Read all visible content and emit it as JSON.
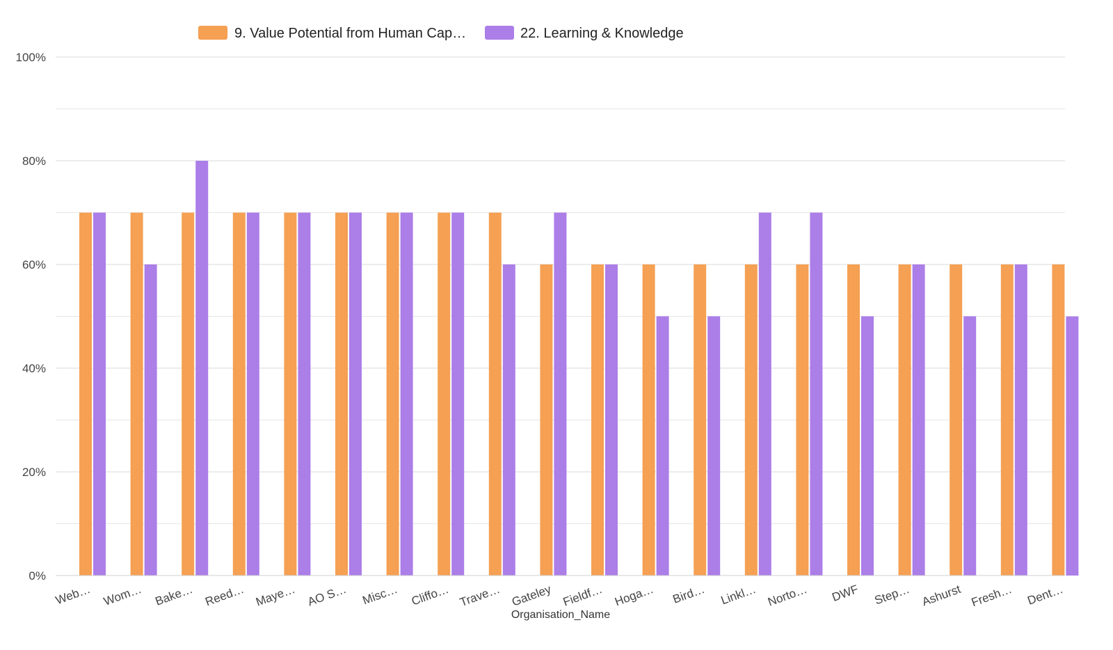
{
  "chart_data": {
    "type": "bar",
    "xlabel": "Organisation_Name",
    "ylabel": "",
    "ylim": [
      0,
      100
    ],
    "y_unit": "%",
    "yticks": [
      "0%",
      "20%",
      "40%",
      "60%",
      "80%",
      "100%"
    ],
    "ytick_values": [
      0,
      20,
      40,
      60,
      80,
      100
    ],
    "minor_gridlines": [
      10,
      30,
      50,
      70,
      90
    ],
    "grid": true,
    "legend_position": "top",
    "categories": [
      "Web…",
      "Wom…",
      "Bake…",
      "Reed…",
      "Maye…",
      "AO S…",
      "Misc…",
      "Cliffo…",
      "Trave…",
      "Gateley",
      "Fieldf…",
      "Hoga…",
      "Bird…",
      "Linkl…",
      "Norto…",
      "DWF",
      "Step…",
      "Ashurst",
      "Fresh…",
      "Dent…"
    ],
    "series": [
      {
        "name": "9. Value Potential from Human Cap…",
        "color": "#f5a053",
        "values": [
          70,
          70,
          70,
          70,
          70,
          70,
          70,
          70,
          70,
          60,
          60,
          60,
          60,
          60,
          60,
          60,
          60,
          60,
          60,
          60
        ]
      },
      {
        "name": "22. Learning & Knowledge",
        "color": "#ab7ee8",
        "values": [
          70,
          60,
          80,
          70,
          70,
          70,
          70,
          70,
          60,
          70,
          60,
          50,
          50,
          70,
          70,
          50,
          60,
          50,
          60,
          50
        ]
      }
    ]
  }
}
